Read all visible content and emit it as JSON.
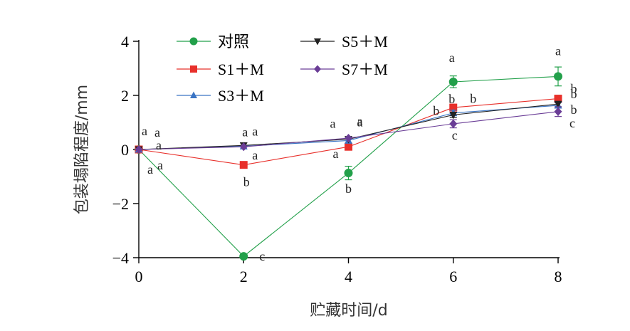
{
  "chart_data": {
    "type": "line",
    "title": "",
    "xlabel": "贮藏时间/d",
    "ylabel": "包装塌陷程度/mm",
    "xlim": [
      0,
      8
    ],
    "ylim": [
      -4,
      4
    ],
    "x_ticks": [
      0,
      2,
      4,
      6,
      8
    ],
    "y_ticks": [
      -4,
      -2,
      0,
      2,
      4
    ],
    "y_tick_labels": [
      "−4",
      "−2",
      "0",
      "2",
      "4"
    ],
    "x": [
      0,
      2,
      4,
      6,
      8
    ],
    "series": [
      {
        "name": "对照",
        "color": "#22a04a",
        "marker": "circle",
        "values": [
          0,
          -3.95,
          -0.87,
          2.5,
          2.7
        ],
        "errors": [
          0.05,
          0.05,
          0.25,
          0.22,
          0.35
        ],
        "sig": [
          "a",
          "c",
          "b",
          "a",
          "a"
        ]
      },
      {
        "name": "S1＋M",
        "color": "#e8302b",
        "marker": "square",
        "values": [
          0,
          -0.57,
          0.1,
          1.55,
          1.88
        ],
        "errors": [
          0.05,
          0.05,
          0.05,
          0.12,
          0.12
        ],
        "sig": [
          "a",
          "b",
          "a",
          "b",
          "b"
        ]
      },
      {
        "name": "S3＋M",
        "color": "#3a74c4",
        "marker": "triangle-up",
        "values": [
          0,
          0.12,
          0.33,
          1.35,
          1.63
        ],
        "errors": [
          0.05,
          0.05,
          0.05,
          0.1,
          0.1
        ],
        "sig": [
          "a",
          "a",
          "a",
          "b",
          "b"
        ]
      },
      {
        "name": "S5＋M",
        "color": "#222222",
        "marker": "triangle-down",
        "values": [
          0,
          0.15,
          0.38,
          1.28,
          1.68
        ],
        "errors": [
          0.05,
          0.05,
          0.05,
          0.1,
          0.1
        ],
        "sig": [
          "a",
          "a",
          "a",
          "b",
          "b"
        ]
      },
      {
        "name": "S7＋M",
        "color": "#6a3d96",
        "marker": "diamond",
        "values": [
          0,
          0.1,
          0.42,
          0.95,
          1.4
        ],
        "errors": [
          0.05,
          0.05,
          0.05,
          0.15,
          0.18
        ],
        "sig": [
          "a",
          "a",
          "a",
          "c",
          "c"
        ]
      }
    ],
    "legend_position": "top-left"
  }
}
